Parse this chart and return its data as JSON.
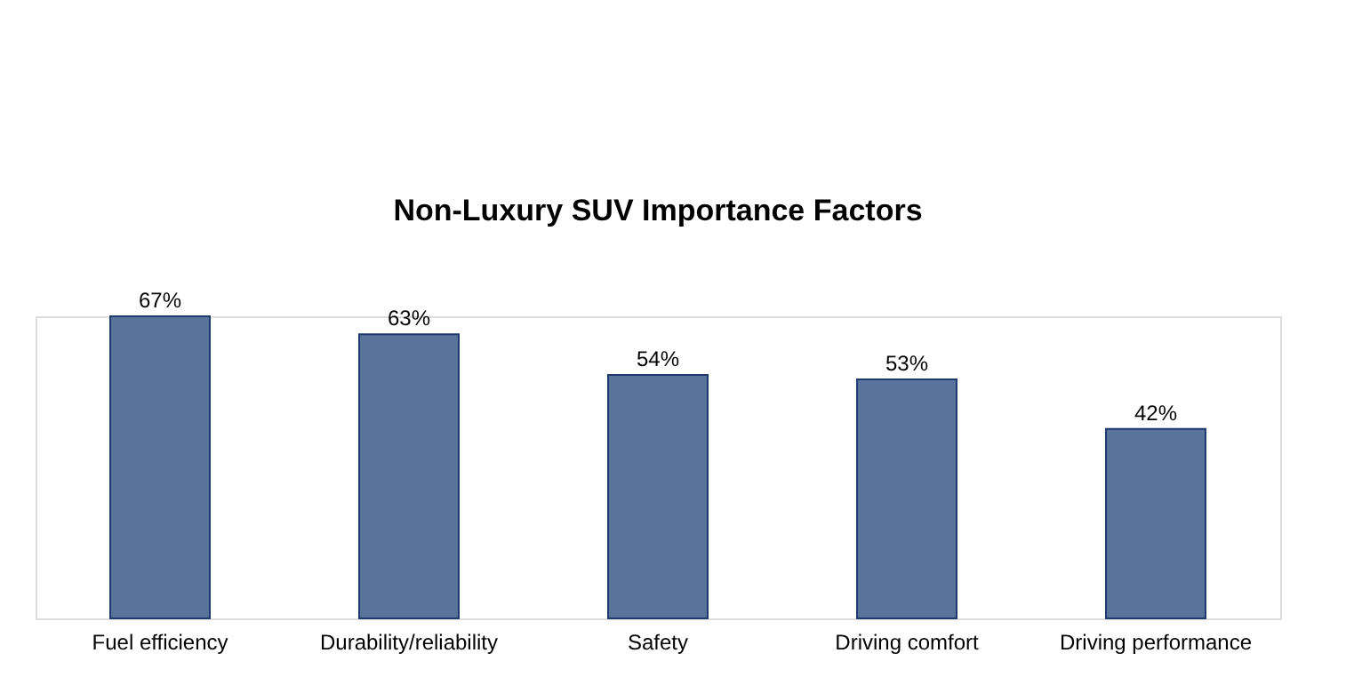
{
  "chart_data": {
    "type": "bar",
    "title": "Non-Luxury SUV Importance Factors",
    "categories": [
      "Fuel efficiency",
      "Durability/reliability",
      "Safety",
      "Driving comfort",
      "Driving performance"
    ],
    "values": [
      67,
      63,
      54,
      53,
      42
    ],
    "value_labels": [
      "67%",
      "63%",
      "54%",
      "53%",
      "42%"
    ],
    "color": "#5a739c",
    "grid": false
  }
}
